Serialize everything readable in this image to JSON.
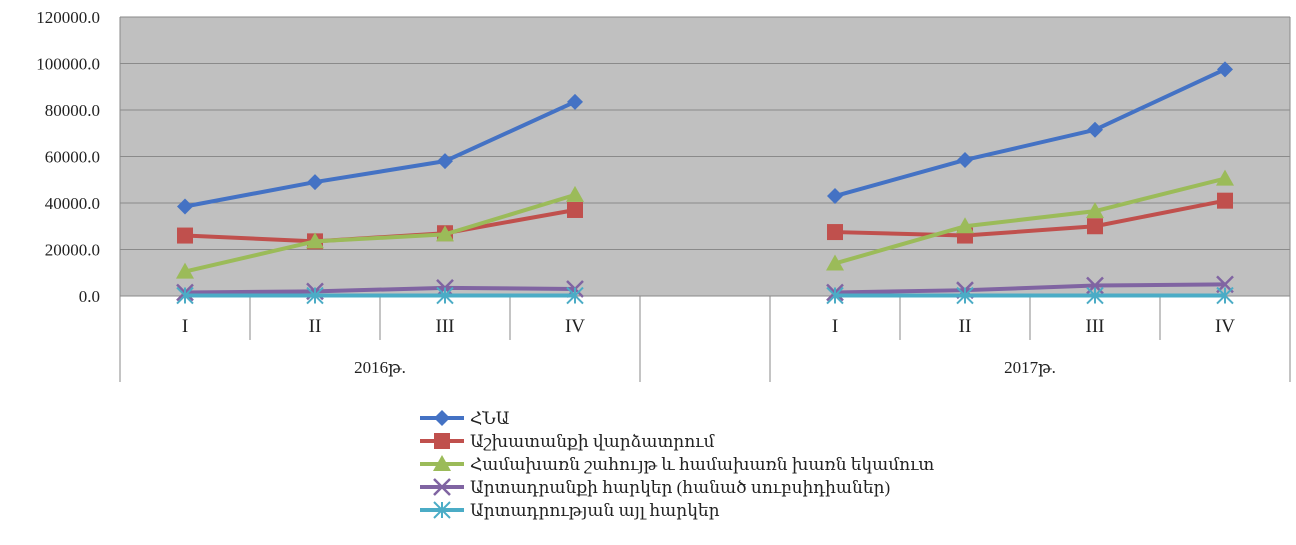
{
  "chart_data": {
    "type": "line",
    "groups": [
      {
        "label": "2016թ.",
        "categories": [
          "I",
          "II",
          "III",
          "IV"
        ]
      },
      {
        "label": "2017թ.",
        "categories": [
          "I",
          "II",
          "III",
          "IV"
        ]
      }
    ],
    "yticks": [
      "0.0",
      "20000.0",
      "40000.0",
      "60000.0",
      "80000.0",
      "100000.0",
      "120000.0"
    ],
    "ylim": [
      0,
      120000
    ],
    "grid": true,
    "legend_position": "bottom",
    "series": [
      {
        "name": "ՀՆԱ",
        "color": "#4472C4",
        "marker": "diamond",
        "values": [
          [
            38500,
            49000,
            58000,
            83500
          ],
          [
            43000,
            58500,
            71500,
            97500
          ]
        ]
      },
      {
        "name": "Աշխատանքի վարձատրում",
        "color": "#C0504D",
        "marker": "square",
        "values": [
          [
            26000,
            23500,
            27000,
            37000
          ],
          [
            27500,
            26000,
            30000,
            41000
          ]
        ]
      },
      {
        "name": "Համախառն շահույթ և համախառն խառն եկամուտ",
        "color": "#9BBB59",
        "marker": "triangle",
        "values": [
          [
            10500,
            23500,
            26500,
            43500
          ],
          [
            14000,
            30000,
            36500,
            50500
          ]
        ]
      },
      {
        "name": "Արտադրանքի հարկեր (հանած սուբսիդիաներ)",
        "color": "#8064A2",
        "marker": "x",
        "values": [
          [
            1500,
            2000,
            3500,
            3000
          ],
          [
            1500,
            2500,
            4500,
            5000
          ]
        ]
      },
      {
        "name": "Արտադրության այլ հարկեր",
        "color": "#4BACC6",
        "marker": "asterisk",
        "values": [
          [
            200,
            200,
            200,
            200
          ],
          [
            200,
            200,
            200,
            200
          ]
        ]
      }
    ]
  }
}
